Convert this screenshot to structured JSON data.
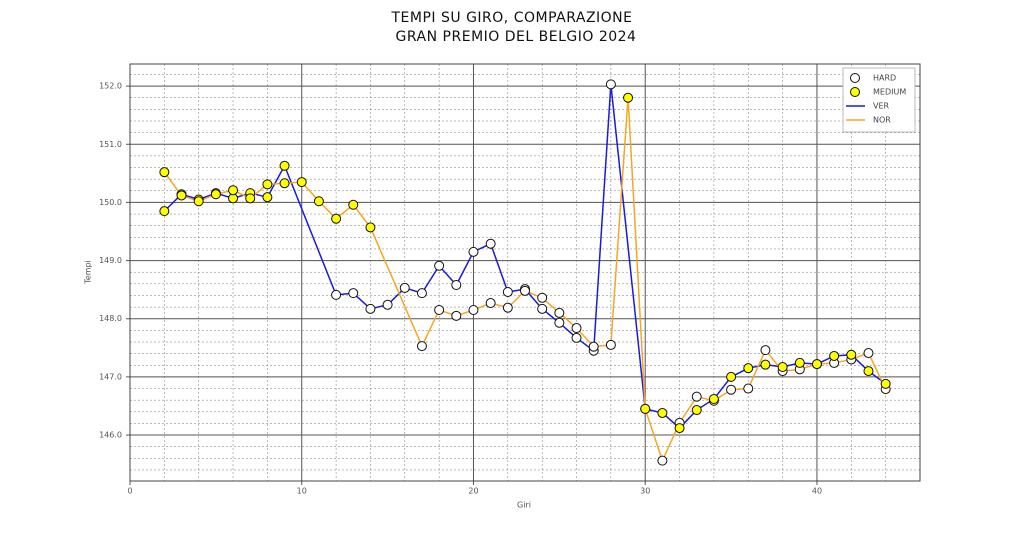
{
  "chart_data": {
    "type": "line",
    "title": [
      "TEMPI SU GIRO, COMPARAZIONE",
      "GRAN PREMIO DEL BELGIO 2024"
    ],
    "x_label": "Giri",
    "y_label": "Tempi",
    "xlim": [
      0,
      46
    ],
    "ylim": [
      145.21,
      152.38
    ],
    "xticks": [
      0,
      10,
      20,
      30,
      40
    ],
    "yticks": [
      {
        "value": 146,
        "label": "146.0"
      },
      {
        "value": 147,
        "label": "147.0"
      },
      {
        "value": 148,
        "label": "148.0"
      },
      {
        "value": 149,
        "label": "149.0"
      },
      {
        "value": 150,
        "label": "150.0"
      },
      {
        "value": 151,
        "label": "151.0"
      },
      {
        "value": 152,
        "label": "152.0"
      }
    ],
    "grid": true,
    "minor_grid": true,
    "legend": "upper right",
    "series": [
      {
        "name": "HARD",
        "type": "scatter",
        "color": "#ffffff",
        "x": [
          12,
          13,
          14,
          15,
          16,
          17,
          18,
          19,
          20,
          21,
          22,
          23,
          24,
          25,
          26,
          27,
          28,
          17,
          18,
          19,
          20,
          21,
          22,
          23,
          24,
          25,
          26,
          27,
          28,
          30,
          31,
          32,
          33,
          34,
          35,
          36,
          37,
          38,
          39,
          40,
          41,
          42,
          43,
          44
        ],
        "values": [
          148.41,
          148.44,
          148.17,
          148.24,
          148.53,
          148.44,
          148.91,
          148.58,
          149.15,
          149.29,
          148.46,
          148.51,
          148.17,
          147.93,
          147.67,
          147.45,
          152.03,
          147.53,
          148.15,
          148.05,
          148.15,
          148.27,
          148.19,
          148.48,
          148.36,
          148.1,
          147.84,
          147.52,
          147.55,
          146.45,
          145.56,
          146.21,
          146.66,
          146.59,
          146.78,
          146.8,
          147.46,
          147.1,
          147.13,
          147.22,
          147.24,
          147.3,
          147.41,
          146.79
        ]
      },
      {
        "name": "MEDIUM",
        "type": "scatter",
        "color": "#ffff00",
        "x": [
          2,
          3,
          4,
          5,
          6,
          7,
          8,
          9,
          30,
          31,
          32,
          33,
          34,
          35,
          36,
          37,
          38,
          39,
          40,
          41,
          42,
          43,
          44,
          2,
          3,
          4,
          5,
          6,
          7,
          8,
          9,
          10,
          11,
          12,
          13,
          14,
          29
        ],
        "values": [
          149.85,
          150.14,
          150.05,
          150.16,
          150.07,
          150.16,
          150.09,
          150.63,
          146.45,
          146.38,
          146.12,
          146.43,
          146.62,
          147.0,
          147.15,
          147.21,
          147.17,
          147.24,
          147.22,
          147.36,
          147.38,
          147.1,
          146.88,
          150.52,
          150.12,
          150.02,
          150.14,
          150.21,
          150.07,
          150.31,
          150.33,
          150.35,
          150.02,
          149.72,
          149.96,
          149.57,
          151.8
        ]
      },
      {
        "name": "VER",
        "type": "line",
        "color": "#1a1adb",
        "x": [
          2,
          3,
          4,
          5,
          6,
          7,
          8,
          9,
          12,
          13,
          14,
          15,
          16,
          17,
          18,
          19,
          20,
          21,
          22,
          23,
          24,
          25,
          26,
          27,
          28,
          30,
          31,
          32,
          33,
          34,
          35,
          36,
          37,
          38,
          39,
          40,
          41,
          42,
          43,
          44
        ],
        "values": [
          149.85,
          150.14,
          150.05,
          150.16,
          150.07,
          150.16,
          150.09,
          150.63,
          148.41,
          148.44,
          148.17,
          148.24,
          148.53,
          148.44,
          148.91,
          148.58,
          149.15,
          149.29,
          148.46,
          148.51,
          148.17,
          147.93,
          147.67,
          147.45,
          152.03,
          146.45,
          146.38,
          146.12,
          146.43,
          146.62,
          147.0,
          147.15,
          147.21,
          147.17,
          147.24,
          147.22,
          147.36,
          147.38,
          147.1,
          146.88
        ]
      },
      {
        "name": "NOR",
        "type": "line",
        "color": "#f5a623",
        "x": [
          2,
          3,
          4,
          5,
          6,
          7,
          8,
          9,
          10,
          11,
          12,
          13,
          14,
          17,
          18,
          19,
          20,
          21,
          22,
          23,
          24,
          25,
          26,
          27,
          28,
          29,
          30,
          31,
          32,
          33,
          34,
          35,
          36,
          37,
          38,
          39,
          40,
          41,
          42,
          43,
          44
        ],
        "values": [
          150.52,
          150.12,
          150.02,
          150.14,
          150.21,
          150.07,
          150.31,
          150.33,
          150.35,
          150.02,
          149.72,
          149.96,
          149.57,
          147.53,
          148.15,
          148.05,
          148.15,
          148.27,
          148.19,
          148.48,
          148.36,
          148.1,
          147.84,
          147.52,
          147.55,
          151.8,
          146.45,
          145.56,
          146.21,
          146.66,
          146.59,
          146.78,
          146.8,
          147.46,
          147.1,
          147.13,
          147.22,
          147.24,
          147.3,
          147.41,
          146.79
        ]
      }
    ]
  }
}
